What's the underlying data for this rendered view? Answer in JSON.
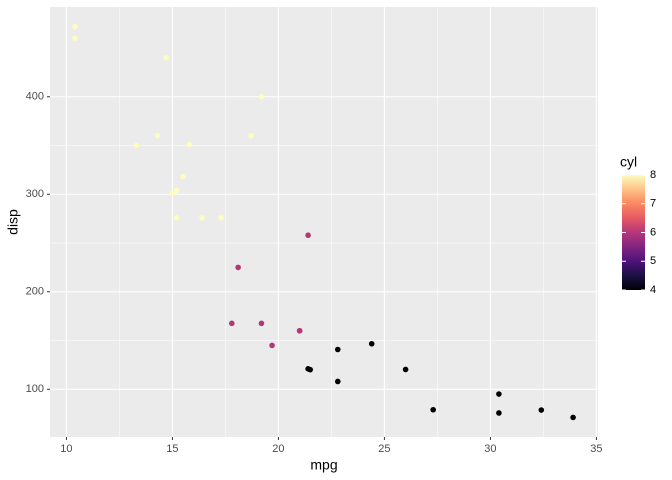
{
  "chart_data": {
    "type": "scatter",
    "x_label": "mpg",
    "y_label": "disp",
    "legend_title": "cyl",
    "x": [
      21.0,
      21.0,
      22.8,
      21.4,
      18.7,
      18.1,
      14.3,
      24.4,
      22.8,
      19.2,
      17.8,
      16.4,
      17.3,
      15.2,
      10.4,
      10.4,
      14.7,
      32.4,
      30.4,
      33.9,
      21.5,
      15.5,
      15.2,
      13.3,
      19.2,
      27.3,
      26.0,
      30.4,
      15.8,
      19.7,
      15.0,
      21.4
    ],
    "y": [
      160,
      160,
      108,
      258,
      360,
      225,
      360,
      146.7,
      140.8,
      167.6,
      167.6,
      275.8,
      275.8,
      275.8,
      472,
      460,
      440,
      78.7,
      75.7,
      71.1,
      120.1,
      318,
      304,
      350,
      400,
      79,
      120.3,
      95.1,
      351,
      145,
      301,
      121
    ],
    "color_values": [
      6,
      6,
      4,
      6,
      8,
      6,
      8,
      4,
      4,
      6,
      6,
      8,
      8,
      8,
      8,
      8,
      8,
      4,
      4,
      4,
      4,
      8,
      8,
      8,
      8,
      4,
      4,
      4,
      8,
      6,
      8,
      4
    ],
    "color_scale": [
      "#000004",
      "#1c1044",
      "#4f127b",
      "#812581",
      "#b5367a",
      "#e55964",
      "#fb8761",
      "#fec287",
      "#fcfdbf"
    ],
    "color_lim": [
      4,
      8
    ],
    "color_ticks": [
      4,
      5,
      6,
      7,
      8
    ],
    "xlim": [
      9.225,
      35.075
    ],
    "xticks": [
      10,
      15,
      20,
      25,
      30,
      35
    ],
    "ylim": [
      51.055,
      492.045
    ],
    "yticks": [
      100,
      200,
      300,
      400
    ],
    "grid": true,
    "legend_position": "right"
  }
}
